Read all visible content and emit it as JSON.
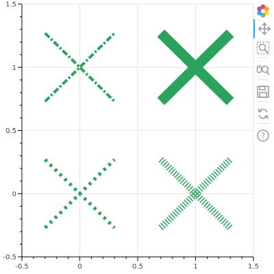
{
  "chart_data": {
    "type": "scatter",
    "marker": "x",
    "xlim": [
      -0.5,
      1.5
    ],
    "ylim": [
      -0.5,
      1.5
    ],
    "xticks": [
      -0.5,
      0,
      0.5,
      1,
      1.5
    ],
    "yticks": [
      -0.5,
      0,
      0.5,
      1,
      1.5
    ],
    "xtick_labels": [
      "-0.5",
      "0",
      "0.5",
      "1",
      "1.5"
    ],
    "ytick_labels": [
      "-0.5",
      "0",
      "0.5",
      "1",
      "1.5"
    ],
    "grid": true,
    "color": "#2ca25f",
    "points": [
      {
        "x": 0,
        "y": 1,
        "style": "dash-dot",
        "size": 0.3
      },
      {
        "x": 1,
        "y": 1,
        "style": "solid-thick",
        "size": 0.3
      },
      {
        "x": 0,
        "y": 0,
        "style": "dotted",
        "size": 0.3
      },
      {
        "x": 1,
        "y": 0,
        "style": "hatched",
        "size": 0.3
      }
    ]
  },
  "toolbar": {
    "tools": [
      "bokeh-logo-icon",
      "pan-icon",
      "box-zoom-icon",
      "wheel-zoom-icon",
      "save-icon",
      "reset-icon",
      "help-icon"
    ],
    "active_color": "#26aae1",
    "icon_color": "#999999"
  }
}
